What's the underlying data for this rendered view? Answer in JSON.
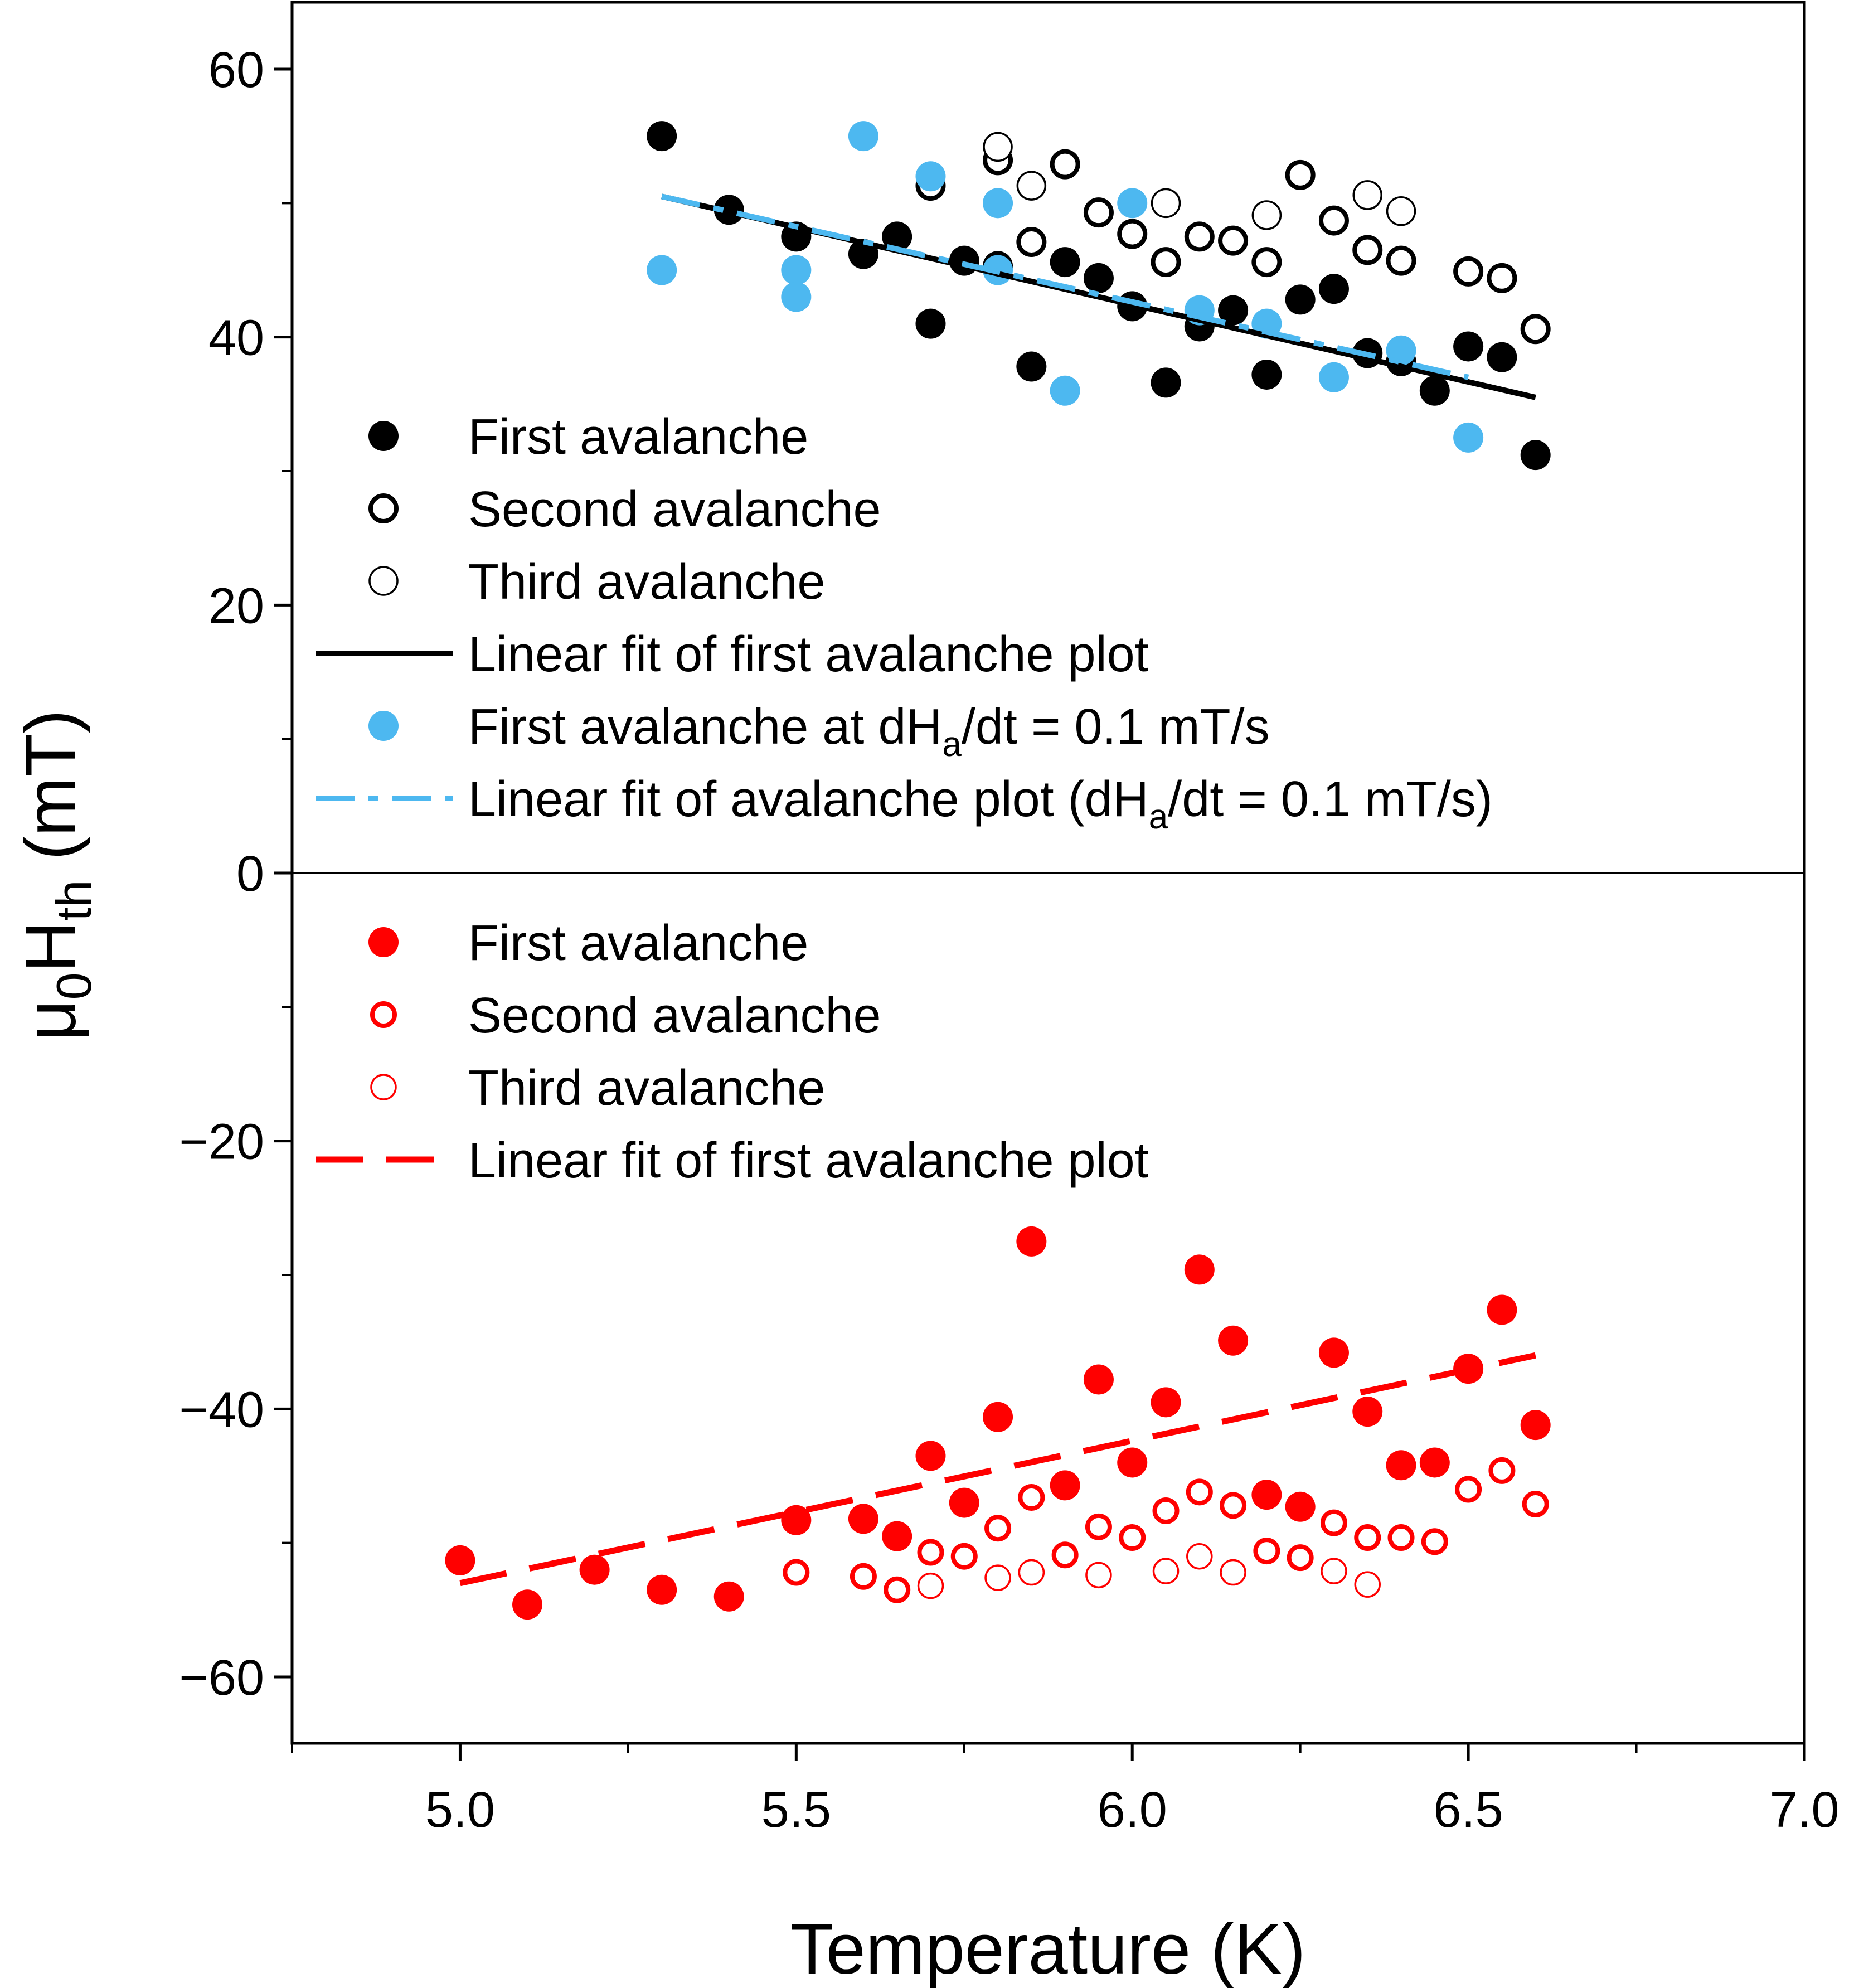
{
  "chart_data": {
    "type": "scatter",
    "xlabel": "Temperature (K)",
    "ylabel": {
      "mu": "μ",
      "mu_sub": "0",
      "H": "H",
      "H_sub": "th",
      "unit": " (mT)"
    },
    "xlim": [
      4.75,
      7.0
    ],
    "ylim": [
      -65,
      65
    ],
    "xticks": [
      {
        "value": 5.0,
        "label": "5.0"
      },
      {
        "value": 5.5,
        "label": "5.5"
      },
      {
        "value": 6.0,
        "label": "6.0"
      },
      {
        "value": 6.5,
        "label": "6.5"
      },
      {
        "value": 7.0,
        "label": "7.0"
      }
    ],
    "yticks": [
      {
        "value": 60,
        "label": "60"
      },
      {
        "value": 40,
        "label": "40"
      },
      {
        "value": 20,
        "label": "20"
      },
      {
        "value": 0,
        "label": "0"
      },
      {
        "value": -20,
        "label": "−20"
      },
      {
        "value": -40,
        "label": "−40"
      },
      {
        "value": -60,
        "label": "−60"
      }
    ],
    "colors": {
      "black": "#000000",
      "blue": "#4db8f0",
      "red": "#ff0000"
    },
    "series": [
      {
        "name": "First avalanche",
        "kind": "filled",
        "color": "#000000",
        "size": "large",
        "points": [
          [
            5.3,
            55
          ],
          [
            5.4,
            49.5
          ],
          [
            5.5,
            47.5
          ],
          [
            5.6,
            46.2
          ],
          [
            5.65,
            47.5
          ],
          [
            5.7,
            41
          ],
          [
            5.75,
            45.7
          ],
          [
            5.8,
            45.3
          ],
          [
            5.85,
            37.8
          ],
          [
            5.9,
            45.6
          ],
          [
            5.95,
            44.4
          ],
          [
            6.0,
            42.3
          ],
          [
            6.05,
            36.6
          ],
          [
            6.1,
            40.8
          ],
          [
            6.15,
            42
          ],
          [
            6.2,
            37.2
          ],
          [
            6.25,
            42.8
          ],
          [
            6.3,
            43.6
          ],
          [
            6.35,
            38.8
          ],
          [
            6.4,
            38.2
          ],
          [
            6.45,
            36
          ],
          [
            6.5,
            39.3
          ],
          [
            6.55,
            38.5
          ],
          [
            6.6,
            31.2
          ]
        ]
      },
      {
        "name": "Second avalanche",
        "kind": "open",
        "color": "#000000",
        "size": "large",
        "points": [
          [
            5.7,
            51.3
          ],
          [
            5.8,
            53.2
          ],
          [
            5.85,
            47.1
          ],
          [
            5.9,
            52.9
          ],
          [
            5.95,
            49.3
          ],
          [
            6.0,
            47.7
          ],
          [
            6.05,
            45.6
          ],
          [
            6.1,
            47.5
          ],
          [
            6.15,
            47.2
          ],
          [
            6.2,
            45.6
          ],
          [
            6.25,
            52.1
          ],
          [
            6.3,
            48.7
          ],
          [
            6.35,
            46.5
          ],
          [
            6.4,
            45.7
          ],
          [
            6.5,
            44.9
          ],
          [
            6.55,
            44.4
          ],
          [
            6.6,
            40.6
          ]
        ]
      },
      {
        "name": "Third avalanche",
        "kind": "open-thin",
        "color": "#000000",
        "size": "large",
        "points": [
          [
            5.8,
            54.2
          ],
          [
            5.85,
            51.3
          ],
          [
            6.05,
            50
          ],
          [
            6.2,
            49.1
          ],
          [
            6.35,
            50.6
          ],
          [
            6.4,
            49.4
          ]
        ]
      },
      {
        "name": "Linear fit of first avalanche plot",
        "kind": "line",
        "color": "#000000",
        "points": [
          [
            5.3,
            50.5
          ],
          [
            6.6,
            35.5
          ]
        ]
      },
      {
        "name": "First avalanche  at dH",
        "legend_sub": "a",
        "legend_suffix": "/dt = 0.1 mT/s",
        "kind": "filled",
        "color": "#4db8f0",
        "size": "large",
        "points": [
          [
            5.3,
            45
          ],
          [
            5.5,
            45
          ],
          [
            5.5,
            43
          ],
          [
            5.6,
            55
          ],
          [
            5.7,
            52
          ],
          [
            5.8,
            50
          ],
          [
            5.8,
            45
          ],
          [
            5.9,
            36
          ],
          [
            6.0,
            50
          ],
          [
            6.1,
            42
          ],
          [
            6.2,
            41
          ],
          [
            6.3,
            37
          ],
          [
            6.4,
            39
          ],
          [
            6.5,
            32.5
          ]
        ]
      },
      {
        "name": "Linear fit of avalanche plot (dH",
        "legend_sub": "a",
        "legend_suffix": "/dt = 0.1 mT/s)",
        "kind": "dashdot",
        "color": "#4db8f0",
        "points": [
          [
            5.3,
            50.5
          ],
          [
            6.5,
            37
          ]
        ]
      },
      {
        "name": "First avalanche",
        "kind": "filled",
        "color": "#ff0000",
        "size": "large",
        "points": [
          [
            5.0,
            -51.3
          ],
          [
            5.1,
            -54.6
          ],
          [
            5.2,
            -52
          ],
          [
            5.3,
            -53.5
          ],
          [
            5.4,
            -54
          ],
          [
            5.5,
            -48.3
          ],
          [
            5.6,
            -48.2
          ],
          [
            5.65,
            -49.5
          ],
          [
            5.7,
            -43.5
          ],
          [
            5.75,
            -47
          ],
          [
            5.8,
            -40.6
          ],
          [
            5.85,
            -27.5
          ],
          [
            5.9,
            -45.7
          ],
          [
            5.95,
            -37.8
          ],
          [
            6.0,
            -44
          ],
          [
            6.05,
            -39.5
          ],
          [
            6.1,
            -29.6
          ],
          [
            6.15,
            -34.9
          ],
          [
            6.2,
            -46.4
          ],
          [
            6.25,
            -47.3
          ],
          [
            6.3,
            -35.8
          ],
          [
            6.35,
            -40.2
          ],
          [
            6.4,
            -44.2
          ],
          [
            6.45,
            -44
          ],
          [
            6.5,
            -37
          ],
          [
            6.55,
            -32.6
          ],
          [
            6.6,
            -41.2
          ]
        ]
      },
      {
        "name": "Second avalanche",
        "kind": "open",
        "color": "#ff0000",
        "size": "medium",
        "points": [
          [
            5.5,
            -52.2
          ],
          [
            5.6,
            -52.5
          ],
          [
            5.65,
            -53.5
          ],
          [
            5.7,
            -50.7
          ],
          [
            5.75,
            -51
          ],
          [
            5.8,
            -48.9
          ],
          [
            5.85,
            -46.6
          ],
          [
            5.9,
            -50.9
          ],
          [
            5.95,
            -48.8
          ],
          [
            6.0,
            -49.6
          ],
          [
            6.05,
            -47.6
          ],
          [
            6.1,
            -46.2
          ],
          [
            6.15,
            -47.2
          ],
          [
            6.2,
            -50.6
          ],
          [
            6.25,
            -51.1
          ],
          [
            6.3,
            -48.5
          ],
          [
            6.35,
            -49.6
          ],
          [
            6.4,
            -49.6
          ],
          [
            6.45,
            -49.9
          ],
          [
            6.5,
            -46
          ],
          [
            6.55,
            -44.6
          ],
          [
            6.6,
            -47.1
          ]
        ]
      },
      {
        "name": "Third avalanche",
        "kind": "open-thin",
        "color": "#ff0000",
        "size": "medium",
        "points": [
          [
            5.7,
            -53.2
          ],
          [
            5.8,
            -52.6
          ],
          [
            5.85,
            -52.2
          ],
          [
            5.95,
            -52.4
          ],
          [
            6.05,
            -52.1
          ],
          [
            6.1,
            -51
          ],
          [
            6.15,
            -52.2
          ],
          [
            6.3,
            -52.1
          ],
          [
            6.35,
            -53.1
          ]
        ]
      },
      {
        "name": "Linear fit of first avalanche plot",
        "kind": "dash",
        "color": "#ff0000",
        "points": [
          [
            5.0,
            -53
          ],
          [
            6.6,
            -36
          ]
        ]
      }
    ],
    "legend_top_order": [
      0,
      1,
      2,
      3,
      4,
      5
    ],
    "legend_bottom_order": [
      6,
      7,
      8,
      9
    ]
  }
}
